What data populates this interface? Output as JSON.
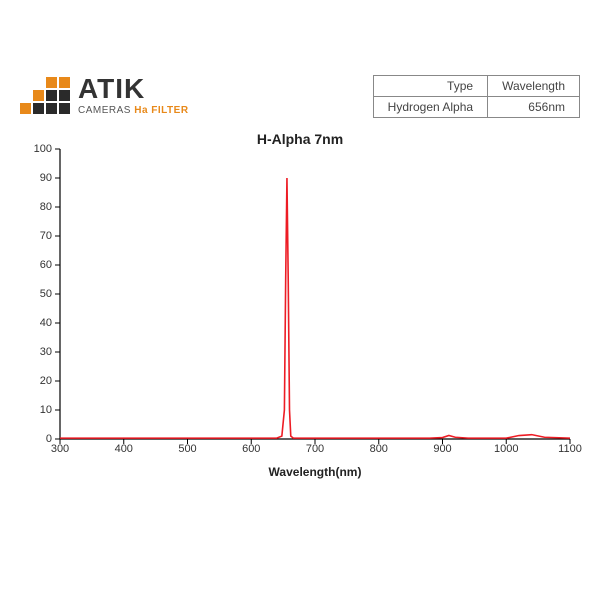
{
  "brand": {
    "name": "ATIK",
    "subtitle_prefix": "CAMERAS",
    "subtitle_filter": "Ha FILTER"
  },
  "info_table": {
    "headers": [
      "Type",
      "Wavelength"
    ],
    "row": [
      "Hydrogen Alpha",
      "656nm"
    ]
  },
  "chart": {
    "type": "line",
    "title": "H-Alpha 7nm",
    "title_fontsize": 14,
    "xlabel": "Wavelength(nm)",
    "label_fontsize": 12,
    "xlim": [
      300,
      1100
    ],
    "ylim": [
      0,
      100
    ],
    "xtick_step": 100,
    "ytick_step": 10,
    "tick_fontsize": 11,
    "line_color": "#ed1c24",
    "line_width": 1.6,
    "axis_color": "#000000",
    "tick_length": 5,
    "background_color": "#ffffff",
    "data": {
      "x": [
        300,
        400,
        500,
        600,
        640,
        648,
        652,
        654,
        656,
        658,
        660,
        662,
        666,
        700,
        800,
        880,
        900,
        910,
        920,
        940,
        1000,
        1020,
        1040,
        1060,
        1100
      ],
      "y": [
        0.3,
        0.3,
        0.3,
        0.3,
        0.3,
        1,
        10,
        55,
        90,
        55,
        10,
        1,
        0.3,
        0.3,
        0.3,
        0.3,
        0.5,
        1.2,
        0.6,
        0.3,
        0.3,
        1.2,
        1.5,
        0.6,
        0.3
      ]
    }
  },
  "logo_colors": {
    "orange": "#e8891a",
    "dark": "#2a2a2a"
  }
}
